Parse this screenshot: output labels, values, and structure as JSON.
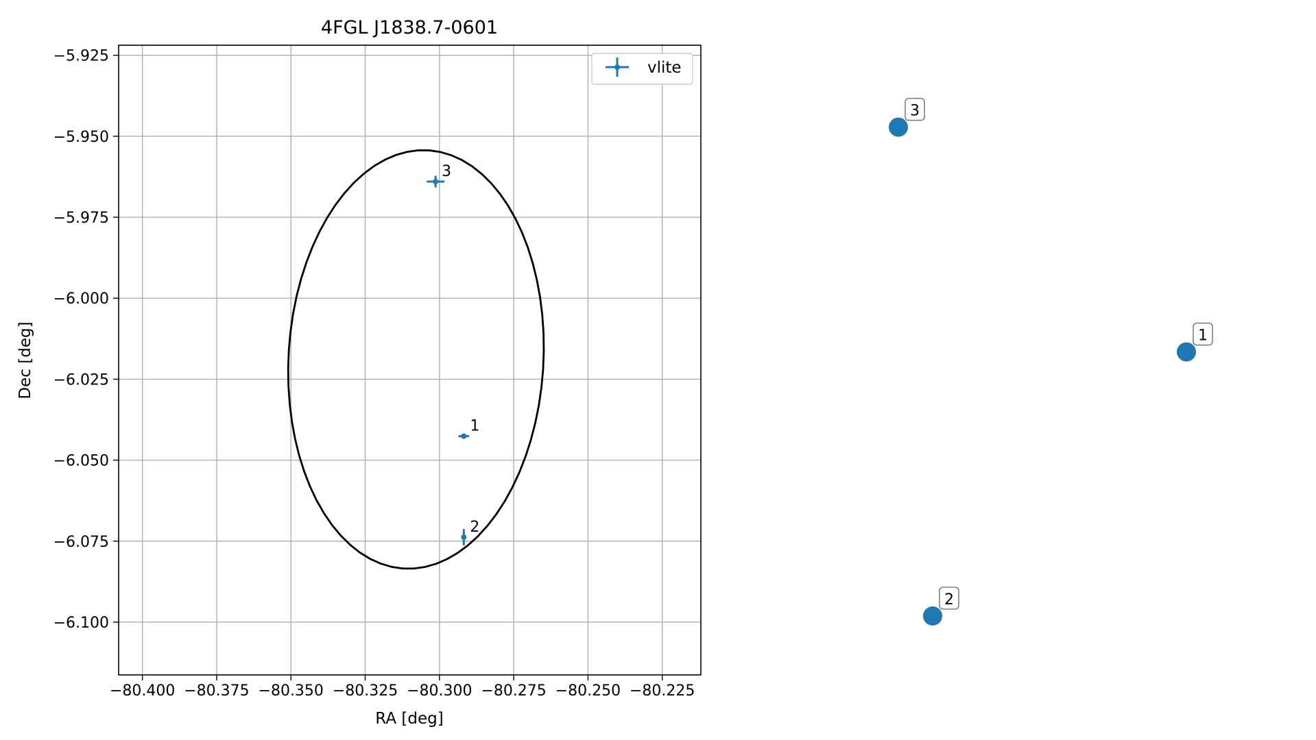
{
  "chart_data": [
    {
      "type": "scatter",
      "title": "4FGL J1838.7-0601",
      "xlabel": "RA [deg]",
      "ylabel": "Dec [deg]",
      "xlim": [
        -80.408,
        -80.212
      ],
      "ylim": [
        -6.1163,
        -5.9219
      ],
      "xticks": [
        -80.4,
        -80.375,
        -80.35,
        -80.325,
        -80.3,
        -80.275,
        -80.25,
        -80.225
      ],
      "xtick_labels": [
        "−80.400",
        "−80.375",
        "−80.350",
        "−80.325",
        "−80.300",
        "−80.275",
        "−80.250",
        "−80.225"
      ],
      "yticks": [
        -5.925,
        -5.95,
        -5.975,
        -6.0,
        -6.025,
        -6.05,
        -6.075,
        -6.1
      ],
      "ytick_labels": [
        "−5.925",
        "−5.950",
        "−5.975",
        "−6.000",
        "−6.025",
        "−6.050",
        "−6.075",
        "−6.100"
      ],
      "grid": true,
      "legend_position": "upper right",
      "series": [
        {
          "name": "vlite",
          "color": "#1f77b4",
          "points": [
            {
              "label": "1",
              "ra": -80.2918,
              "dec": -6.0426,
              "ra_err": 0.0018,
              "dec_err": 0.0005
            },
            {
              "label": "2",
              "ra": -80.2918,
              "dec": -6.0738,
              "ra_err": 0.0007,
              "dec_err": 0.0025
            },
            {
              "label": "3",
              "ra": -80.3013,
              "dec": -5.964,
              "ra_err": 0.003,
              "dec_err": 0.0018
            }
          ]
        }
      ],
      "ellipse": {
        "color": "#000000",
        "center_ra": -80.3079,
        "center_dec": -6.0189,
        "semi_axis_ra": 0.0429,
        "semi_axis_dec": 0.0647,
        "rotation_deg": -4
      }
    },
    {
      "type": "scatter",
      "axes_visible": false,
      "color": "#1f77b4",
      "points": [
        {
          "label": "1",
          "x": 0.86,
          "y": 0.52
        },
        {
          "label": "2",
          "x": 0.12,
          "y": 0.05
        },
        {
          "label": "3",
          "x": 0.02,
          "y": 0.92
        }
      ]
    }
  ]
}
